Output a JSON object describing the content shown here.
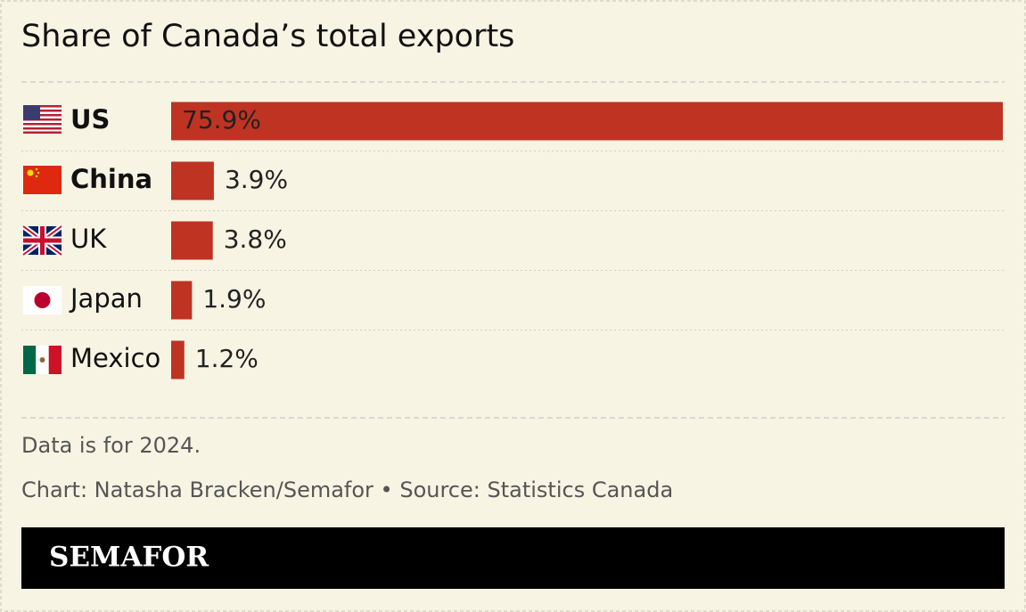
{
  "chart_data": {
    "type": "bar",
    "orientation": "horizontal",
    "title": "Share of Canada’s total exports",
    "categories": [
      "US",
      "China",
      "UK",
      "Japan",
      "Mexico"
    ],
    "values": [
      75.9,
      3.9,
      3.8,
      1.9,
      1.2
    ],
    "value_labels": [
      "75.9%",
      "3.9%",
      "3.8%",
      "1.9%",
      "1.2%"
    ],
    "bold": [
      true,
      true,
      false,
      false,
      false
    ],
    "color": "#bf3322",
    "notes": [
      "Data is for 2024.",
      "Chart: Natasha Bracken/Semafor • Source: Statistics Canada"
    ],
    "brand": "SEMAFOR"
  }
}
